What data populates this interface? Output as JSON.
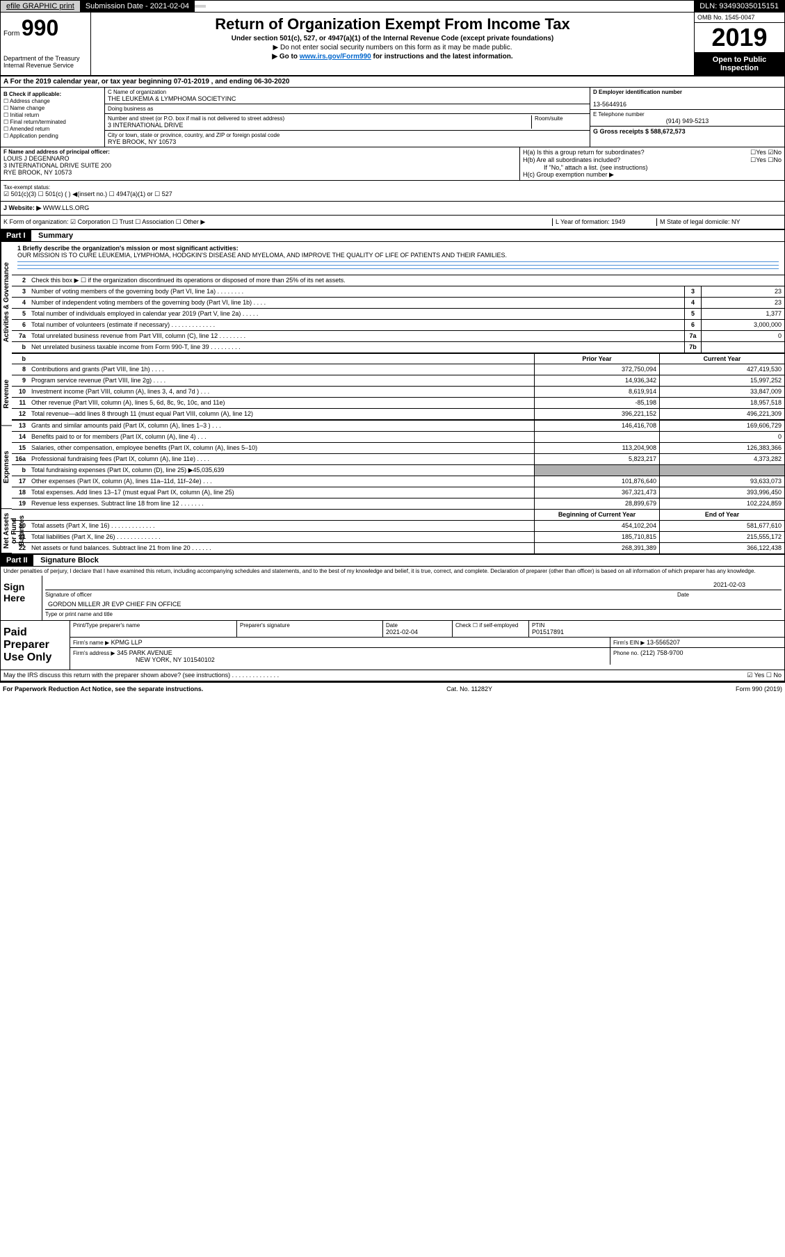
{
  "topbar": {
    "efile": "efile GRAPHIC print",
    "subdate_label": "Submission Date - 2021-02-04",
    "dln": "DLN: 93493035015151"
  },
  "header": {
    "form_label": "Form",
    "form_num": "990",
    "dept": "Department of the Treasury\nInternal Revenue Service",
    "title": "Return of Organization Exempt From Income Tax",
    "subtitle": "Under section 501(c), 527, or 4947(a)(1) of the Internal Revenue Code (except private foundations)",
    "note": "▶ Do not enter social security numbers on this form as it may be made public.",
    "goto": "▶ Go to www.irs.gov/Form990 for instructions and the latest information.",
    "goto_link": "www.irs.gov/Form990",
    "omb": "OMB No. 1545-0047",
    "year": "2019",
    "inspect": "Open to Public Inspection"
  },
  "period": "A For the 2019 calendar year, or tax year beginning 07-01-2019    , and ending 06-30-2020",
  "section_b": {
    "label": "B Check if applicable:",
    "items": [
      "☐ Address change",
      "☐ Name change",
      "☐ Initial return",
      "☐ Final return/terminated",
      "☐ Amended return",
      "☐ Application pending"
    ]
  },
  "section_c": {
    "name_label": "C Name of organization",
    "name": "THE LEUKEMIA & LYMPHOMA SOCIETYINC",
    "dba_label": "Doing business as",
    "dba": "",
    "addr_label": "Number and street (or P.O. box if mail is not delivered to street address)",
    "room_label": "Room/suite",
    "addr": "3 INTERNATIONAL DRIVE",
    "city_label": "City or town, state or province, country, and ZIP or foreign postal code",
    "city": "RYE BROOK, NY  10573"
  },
  "section_d": {
    "ein_label": "D Employer identification number",
    "ein": "13-5644916",
    "phone_label": "E Telephone number",
    "phone": "(914) 949-5213",
    "receipts_label": "G Gross receipts $ 588,672,573"
  },
  "section_f": {
    "label": "F  Name and address of principal officer:",
    "name": "LOUIS J DEGENNARO",
    "addr": "3 INTERNATIONAL DRIVE SUITE 200\nRYE BROOK, NY  10573"
  },
  "section_h": {
    "ha": "H(a)  Is this a group return for subordinates?",
    "hb": "H(b)  Are all subordinates included?",
    "hb_note": "If \"No,\" attach a list. (see instructions)",
    "hc": "H(c)  Group exemption number ▶"
  },
  "section_i": {
    "label": "Tax-exempt status:",
    "opts": "☑ 501(c)(3)   ☐ 501(c) (  ) ◀(insert no.)   ☐ 4947(a)(1) or  ☐ 527"
  },
  "section_j": {
    "label": "J   Website: ▶",
    "val": "WWW.LLS.ORG"
  },
  "section_k": {
    "label": "K Form of organization:  ☑ Corporation ☐ Trust ☐ Association ☐ Other ▶",
    "l": "L Year of formation: 1949",
    "m": "M State of legal domicile: NY"
  },
  "part1": {
    "header": "Part I",
    "title": "Summary",
    "mission_label": "1   Briefly describe the organization's mission or most significant activities:",
    "mission": "OUR MISSION IS TO CURE LEUKEMIA, LYMPHOMA, HODGKIN'S DISEASE AND MYELOMA, AND IMPROVE THE QUALITY OF LIFE OF PATIENTS AND THEIR FAMILIES.",
    "vert1": "Activities & Governance",
    "vert2": "Revenue",
    "vert3": "Expenses",
    "vert4": "Net Assets or Fund Balances",
    "line2": "Check this box ▶ ☐  if the organization discontinued its operations or disposed of more than 25% of its net assets.",
    "prior_year": "Prior Year",
    "current_year": "Current Year",
    "begin_year": "Beginning of Current Year",
    "end_year": "End of Year",
    "lines": [
      {
        "n": "3",
        "d": "Number of voting members of the governing body (Part VI, line 1a)  .   .   .   .   .   .   .   .",
        "box": "3",
        "v2": "23"
      },
      {
        "n": "4",
        "d": "Number of independent voting members of the governing body (Part VI, line 1b)  .   .   .   .",
        "box": "4",
        "v2": "23"
      },
      {
        "n": "5",
        "d": "Total number of individuals employed in calendar year 2019 (Part V, line 2a)  .   .   .   .   .",
        "box": "5",
        "v2": "1,377"
      },
      {
        "n": "6",
        "d": "Total number of volunteers (estimate if necessary)   .   .   .   .   .   .   .   .   .   .   .   .   .",
        "box": "6",
        "v2": "3,000,000"
      },
      {
        "n": "7a",
        "d": "Total unrelated business revenue from Part VIII, column (C), line 12  .   .   .   .   .   .   .   .",
        "box": "7a",
        "v2": "0"
      },
      {
        "n": "b",
        "d": "Net unrelated business taxable income from Form 990-T, line 39   .   .   .   .   .   .   .   .   .",
        "box": "7b",
        "v2": ""
      }
    ],
    "rev_lines": [
      {
        "n": "8",
        "d": "Contributions and grants (Part VIII, line 1h)  .   .   .   .",
        "v1": "372,750,094",
        "v2": "427,419,530"
      },
      {
        "n": "9",
        "d": "Program service revenue (Part VIII, line 2g)  .   .   .   .",
        "v1": "14,936,342",
        "v2": "15,997,252"
      },
      {
        "n": "10",
        "d": "Investment income (Part VIII, column (A), lines 3, 4, and 7d )   .   .   .",
        "v1": "8,619,914",
        "v2": "33,847,009"
      },
      {
        "n": "11",
        "d": "Other revenue (Part VIII, column (A), lines 5, 6d, 8c, 9c, 10c, and 11e)",
        "v1": "-85,198",
        "v2": "18,957,518"
      },
      {
        "n": "12",
        "d": "Total revenue—add lines 8 through 11 (must equal Part VIII, column (A), line 12)",
        "v1": "396,221,152",
        "v2": "496,221,309"
      }
    ],
    "exp_lines": [
      {
        "n": "13",
        "d": "Grants and similar amounts paid (Part IX, column (A), lines 1–3 )  .   .   .",
        "v1": "146,416,708",
        "v2": "169,606,729"
      },
      {
        "n": "14",
        "d": "Benefits paid to or for members (Part IX, column (A), line 4)  .   .   .",
        "v1": "",
        "v2": "0"
      },
      {
        "n": "15",
        "d": "Salaries, other compensation, employee benefits (Part IX, column (A), lines 5–10)",
        "v1": "113,204,908",
        "v2": "126,383,366"
      },
      {
        "n": "16a",
        "d": "Professional fundraising fees (Part IX, column (A), line 11e)   .   .   .   .",
        "v1": "5,823,217",
        "v2": "4,373,282"
      },
      {
        "n": "b",
        "d": "Total fundraising expenses (Part IX, column (D), line 25) ▶45,035,639",
        "shaded": true
      },
      {
        "n": "17",
        "d": "Other expenses (Part IX, column (A), lines 11a–11d, 11f–24e)   .   .   .",
        "v1": "101,876,640",
        "v2": "93,633,073"
      },
      {
        "n": "18",
        "d": "Total expenses. Add lines 13–17 (must equal Part IX, column (A), line 25)",
        "v1": "367,321,473",
        "v2": "393,996,450"
      },
      {
        "n": "19",
        "d": "Revenue less expenses. Subtract line 18 from line 12  .   .   .   .   .   .   .",
        "v1": "28,899,679",
        "v2": "102,224,859"
      }
    ],
    "net_lines": [
      {
        "n": "20",
        "d": "Total assets (Part X, line 16)  .   .   .   .   .   .   .   .   .   .   .   .   .",
        "v1": "454,102,204",
        "v2": "581,677,610"
      },
      {
        "n": "21",
        "d": "Total liabilities (Part X, line 26)  .   .   .   .   .   .   .   .   .   .   .   .   .",
        "v1": "185,710,815",
        "v2": "215,555,172"
      },
      {
        "n": "22",
        "d": "Net assets or fund balances. Subtract line 21 from line 20  .   .   .   .   .   .",
        "v1": "268,391,389",
        "v2": "366,122,438"
      }
    ]
  },
  "part2": {
    "header": "Part II",
    "title": "Signature Block",
    "declaration": "Under penalties of perjury, I declare that I have examined this return, including accompanying schedules and statements, and to the best of my knowledge and belief, it is true, correct, and complete. Declaration of preparer (other than officer) is based on all information of which preparer has any knowledge.",
    "sign_here": "Sign Here",
    "sig_officer": "Signature of officer",
    "sig_date": "2021-02-03",
    "sig_date_label": "Date",
    "officer_name": "GORDON MILLER JR  EVP CHIEF FIN OFFICE",
    "officer_label": "Type or print name and title",
    "paid_prep": "Paid Preparer Use Only",
    "prep_name_label": "Print/Type preparer's name",
    "prep_sig_label": "Preparer's signature",
    "prep_date_label": "Date",
    "prep_date": "2021-02-04",
    "prep_check": "Check ☐ if self-employed",
    "ptin_label": "PTIN",
    "ptin": "P01517891",
    "firm_name_label": "Firm's name    ▶",
    "firm_name": "KPMG LLP",
    "firm_ein_label": "Firm's EIN ▶",
    "firm_ein": "13-5565207",
    "firm_addr_label": "Firm's address ▶",
    "firm_addr": "345 PARK AVENUE",
    "firm_city": "NEW YORK, NY  101540102",
    "firm_phone_label": "Phone no.",
    "firm_phone": "(212) 758-9700",
    "irs_discuss": "May the IRS discuss this return with the preparer shown above? (see instructions)   .   .   .   .   .   .   .   .   .   .   .   .   .   .",
    "yes_no": "☑ Yes ☐ No"
  },
  "footer": {
    "paperwork": "For Paperwork Reduction Act Notice, see the separate instructions.",
    "cat": "Cat. No. 11282Y",
    "form": "Form 990 (2019)"
  }
}
